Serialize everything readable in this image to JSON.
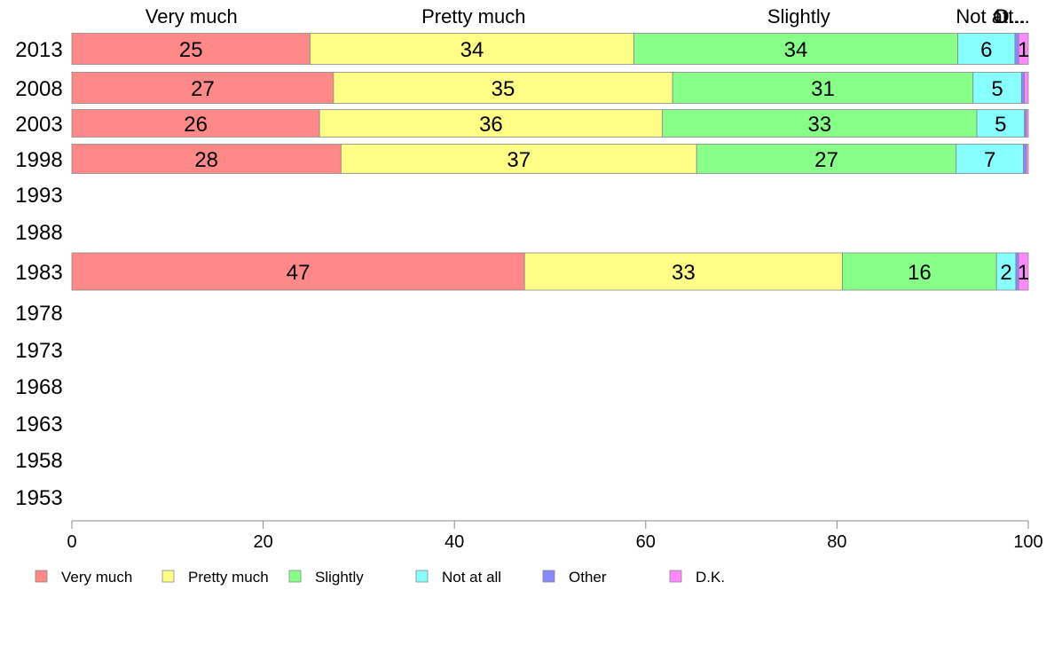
{
  "chart_data": {
    "type": "bar",
    "orientation": "horizontal",
    "stacked": true,
    "title": "",
    "xlabel": "",
    "ylabel": "",
    "xlim": [
      0,
      100
    ],
    "x_ticks": [
      "0",
      "20",
      "40",
      "60",
      "80",
      "100"
    ],
    "categories": [
      "2013",
      "2008",
      "2003",
      "1998",
      "1993",
      "1988",
      "1983",
      "1978",
      "1973",
      "1968",
      "1963",
      "1958",
      "1953"
    ],
    "column_headers": [
      "Very much",
      "Pretty much",
      "Slightly",
      "Not at all",
      "Other",
      "D.K."
    ],
    "column_headers_display": [
      "Very much",
      "Pretty much",
      "Slightly",
      "Not at...",
      "Ot...",
      "D..."
    ],
    "series": [
      {
        "name": "Very much",
        "color": "#ff8888",
        "values": [
          25,
          27,
          26,
          28,
          null,
          null,
          47,
          null,
          null,
          null,
          null,
          null,
          null
        ]
      },
      {
        "name": "Pretty much",
        "color": "#ffff88",
        "values": [
          34,
          35,
          36,
          37,
          null,
          null,
          33,
          null,
          null,
          null,
          null,
          null,
          null
        ]
      },
      {
        "name": "Slightly",
        "color": "#88ff88",
        "values": [
          34,
          31,
          33,
          27,
          null,
          null,
          16,
          null,
          null,
          null,
          null,
          null,
          null
        ]
      },
      {
        "name": "Not at all",
        "color": "#88ffff",
        "values": [
          6,
          5,
          5,
          7,
          null,
          null,
          2,
          null,
          null,
          null,
          null,
          null,
          null
        ]
      },
      {
        "name": "Other",
        "color": "#8888ff",
        "values": [
          0.4,
          0.3,
          0.2,
          0.3,
          null,
          null,
          0.3,
          null,
          null,
          null,
          null,
          null,
          null
        ]
      },
      {
        "name": "D.K.",
        "color": "#ff88ff",
        "values": [
          1,
          0.4,
          0.2,
          0.2,
          null,
          null,
          1,
          null,
          null,
          null,
          null,
          null,
          null
        ]
      }
    ],
    "labels_shown": [
      [
        "25",
        "34",
        "34",
        "6",
        "",
        "1"
      ],
      [
        "27",
        "35",
        "31",
        "5",
        "",
        ""
      ],
      [
        "26",
        "36",
        "33",
        "5",
        "",
        ""
      ],
      [
        "28",
        "37",
        "27",
        "7",
        "",
        ""
      ],
      null,
      null,
      [
        "47",
        "33",
        "16",
        "2",
        "",
        "1"
      ],
      null,
      null,
      null,
      null,
      null,
      null
    ],
    "legend": {
      "placement": "bottom",
      "entries": [
        "Very much",
        "Pretty much",
        "Slightly",
        "Not at all",
        "Other",
        "D.K."
      ]
    }
  }
}
